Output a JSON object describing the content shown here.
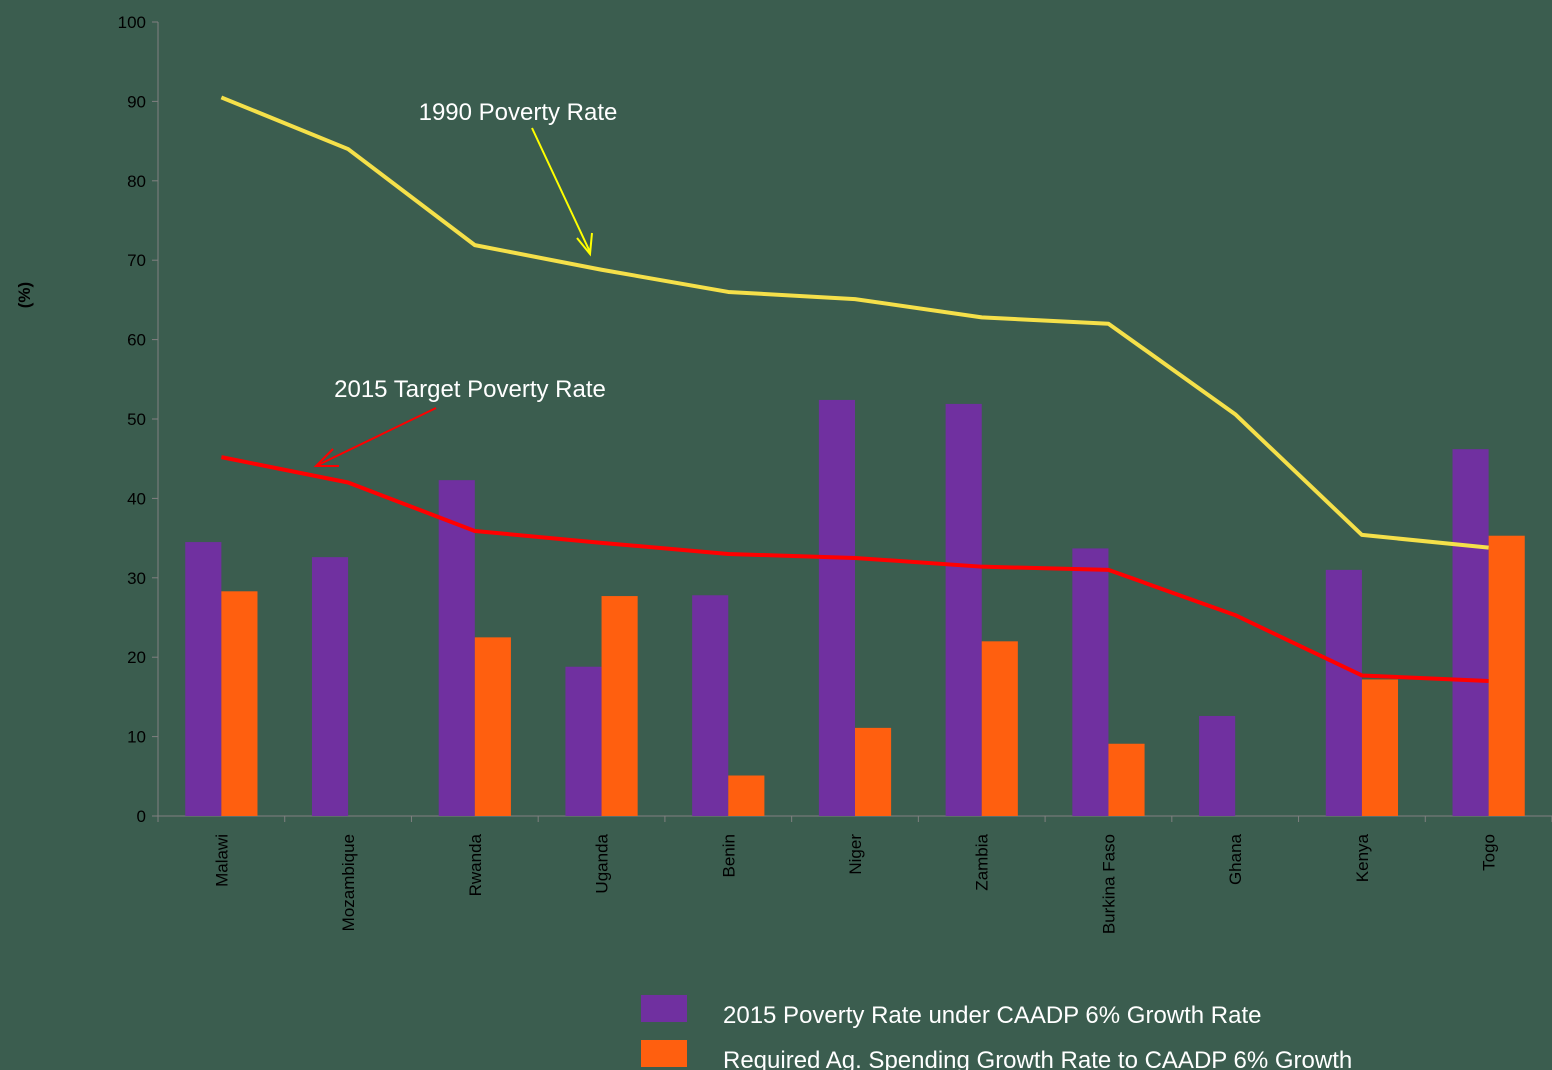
{
  "chart_data": {
    "type": "bar",
    "y_label": "(%)",
    "categories": [
      "Malawi",
      "Mozambique",
      "Rwanda",
      "Uganda",
      "Benin",
      "Niger",
      "Zambia",
      "Burkina Faso",
      "Ghana",
      "Kenya",
      "Togo"
    ],
    "series": [
      {
        "name": "2015 Poverty Rate under  CAADP 6% Growth Rate",
        "type": "bar",
        "color": "#7030a0",
        "values": [
          34.5,
          32.6,
          42.3,
          18.8,
          27.8,
          52.4,
          51.9,
          33.7,
          12.6,
          31.0,
          46.2
        ]
      },
      {
        "name": "Required Ag. Spending Growth Rate to CAADP 6% Growth",
        "type": "bar",
        "color": "#ff5f0f",
        "values": [
          28.3,
          null,
          22.5,
          27.7,
          5.1,
          11.1,
          22.0,
          9.1,
          null,
          17.2,
          35.3
        ]
      },
      {
        "name": "1990 Poverty Rate",
        "type": "line",
        "color": "#f5e04a",
        "values": [
          90.5,
          84.0,
          71.9,
          68.8,
          66.0,
          65.1,
          62.8,
          62.0,
          50.6,
          35.4,
          33.8
        ]
      },
      {
        "name": "2015 Target Poverty Rate",
        "type": "line",
        "color": "#ff0000",
        "values": [
          45.2,
          42.0,
          35.9,
          34.4,
          33.0,
          32.5,
          31.4,
          31.0,
          25.3,
          17.7,
          17.0
        ]
      }
    ],
    "ylim": [
      0,
      100
    ],
    "yticks": [
      0,
      10,
      20,
      30,
      40,
      50,
      60,
      70,
      80,
      90,
      100
    ],
    "grid": false
  }
}
